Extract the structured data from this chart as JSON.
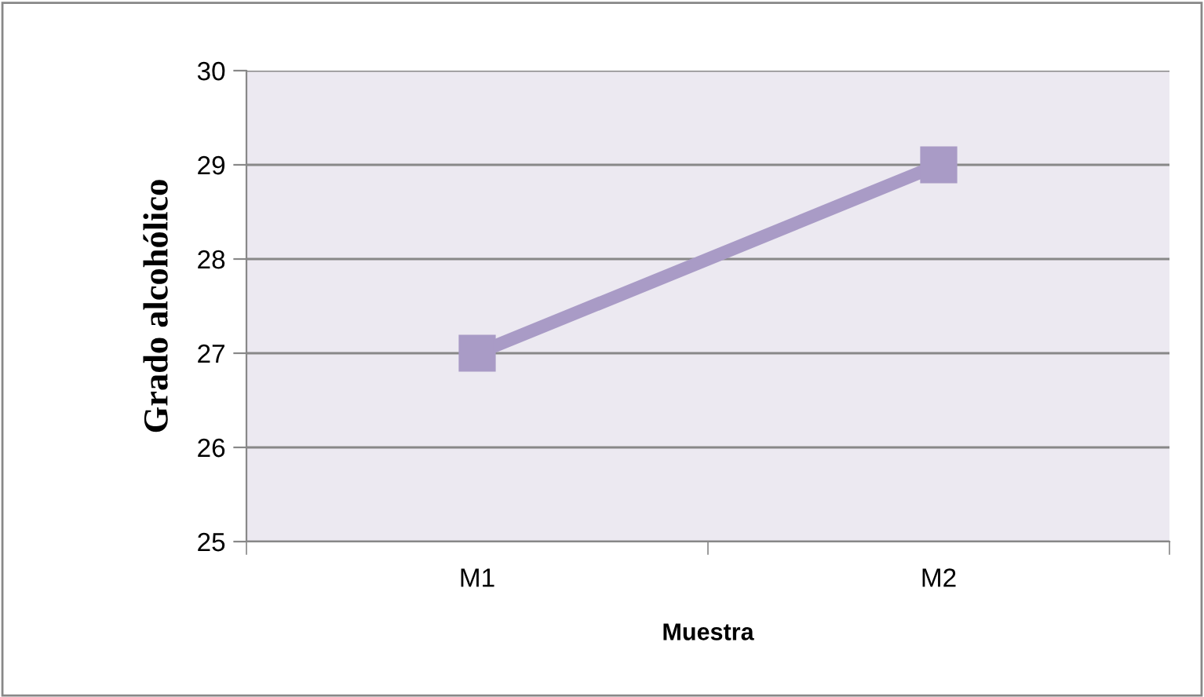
{
  "chart_data": {
    "type": "line",
    "xlabel": "Muestra",
    "ylabel": "Grado alcohólico",
    "categories": [
      "M1",
      "M2"
    ],
    "series": [
      {
        "color": "#a99bc6",
        "values": [
          27,
          29
        ]
      }
    ],
    "ylim": [
      25,
      30
    ],
    "yticks": [
      25,
      26,
      27,
      28,
      29,
      30
    ],
    "grid": "y",
    "marker": "square",
    "line_style": "solid"
  }
}
